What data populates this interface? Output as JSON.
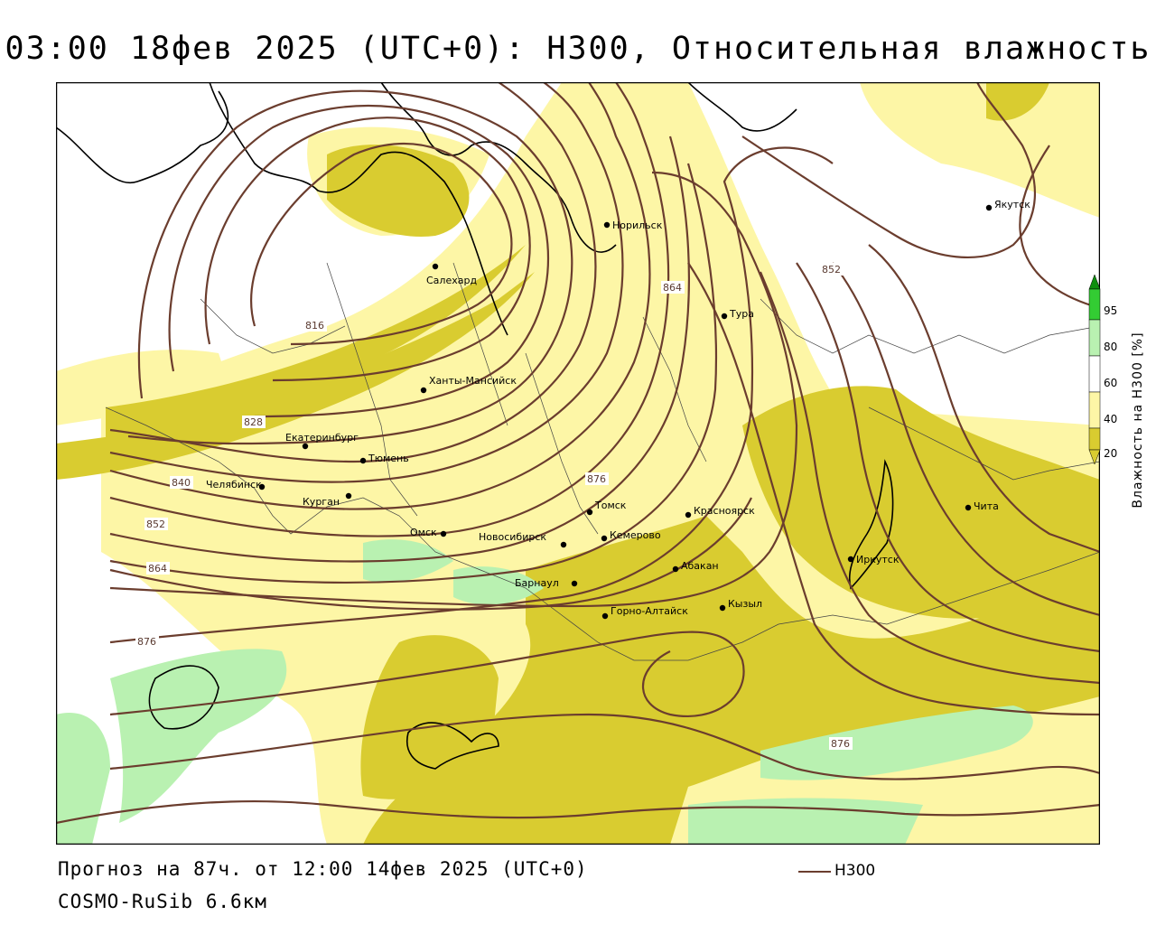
{
  "title": "03:00 18фев 2025 (UTC+0): H300, Относительная влажность",
  "footer": {
    "forecast": "Прогноз на 87ч. от 12:00 14фев 2025 (UTC+0)",
    "model": "COSMO-RuSib 6.6км"
  },
  "legend": {
    "line_label": "H300",
    "line_color": "#6b3d2e"
  },
  "colorbar": {
    "title": "Влажность на H300 [%]",
    "ticks": [
      "95",
      "80",
      "60",
      "40",
      "20"
    ],
    "colors": {
      "lt20": "#d9cc30",
      "20_40": "#fdf6a6",
      "40_60": "#ffffff",
      "60_80": "#b9f1b1",
      "80_95": "#33cc33",
      "gt95": "#0e8f0e"
    }
  },
  "contour_labels": [
    "816",
    "828",
    "840",
    "852",
    "864",
    "876",
    "852",
    "864",
    "876",
    "876"
  ],
  "cities": [
    "Норильск",
    "Якутск",
    "Салехард",
    "Тура",
    "Ханты-Мансийск",
    "Екатеринбург",
    "Тюмень",
    "Челябинск",
    "Курган",
    "Омск",
    "Новосибирск",
    "Томск",
    "Кемерово",
    "Красноярск",
    "Барнаул",
    "Абакан",
    "Иркутск",
    "Чита",
    "Горно-Алтайск",
    "Кызыл"
  ]
}
